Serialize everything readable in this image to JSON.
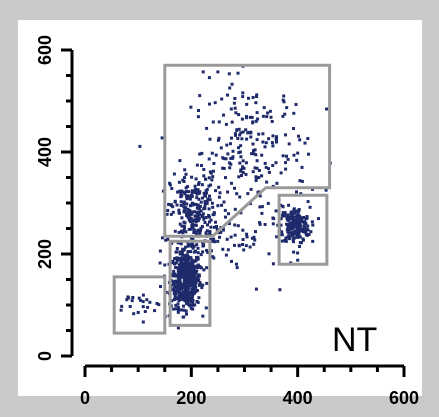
{
  "chart_data": {
    "type": "scatter",
    "title": "",
    "xlabel": "",
    "ylabel": "",
    "panel_label": "NT",
    "xlim": [
      0,
      600
    ],
    "ylim": [
      0,
      600
    ],
    "x_ticks": [
      {
        "value": 0,
        "label": "0"
      },
      {
        "value": 200,
        "label": "200"
      },
      {
        "value": 400,
        "label": "400"
      },
      {
        "value": 600,
        "label": "600"
      }
    ],
    "y_ticks": [
      {
        "value": 0,
        "label": "0"
      },
      {
        "value": 200,
        "label": "200"
      },
      {
        "value": 400,
        "label": "400"
      },
      {
        "value": 600,
        "label": "600"
      }
    ],
    "grid": false,
    "colors": {
      "points": "#1f2a6b",
      "gates": "#9a9a9a",
      "axis": "#000000",
      "frame": "#c9cacc"
    },
    "clusters": [
      {
        "center": [
          190,
          150
        ],
        "spread": [
          14,
          28
        ],
        "count": 520
      },
      {
        "center": [
          395,
          255
        ],
        "spread": [
          14,
          18
        ],
        "count": 190
      },
      {
        "center": [
          205,
          280
        ],
        "spread": [
          22,
          40
        ],
        "count": 260
      },
      {
        "center": [
          310,
          400
        ],
        "spread": [
          55,
          70
        ],
        "count": 230
      },
      {
        "center": [
          110,
          100
        ],
        "spread": [
          28,
          14
        ],
        "count": 28
      },
      {
        "center": [
          300,
          230
        ],
        "spread": [
          60,
          40
        ],
        "count": 60
      }
    ],
    "gates": [
      {
        "name": "gate-low",
        "polygon": [
          [
            55,
            45
          ],
          [
            150,
            45
          ],
          [
            150,
            155
          ],
          [
            55,
            155
          ]
        ]
      },
      {
        "name": "gate-main",
        "polygon": [
          [
            160,
            60
          ],
          [
            235,
            60
          ],
          [
            235,
            225
          ],
          [
            160,
            225
          ]
        ]
      },
      {
        "name": "gate-right",
        "polygon": [
          [
            365,
            180
          ],
          [
            455,
            180
          ],
          [
            455,
            315
          ],
          [
            365,
            315
          ]
        ]
      },
      {
        "name": "gate-upper",
        "polygon": [
          [
            150,
            235
          ],
          [
            240,
            235
          ],
          [
            340,
            330
          ],
          [
            460,
            330
          ],
          [
            460,
            570
          ],
          [
            150,
            570
          ]
        ]
      }
    ]
  }
}
